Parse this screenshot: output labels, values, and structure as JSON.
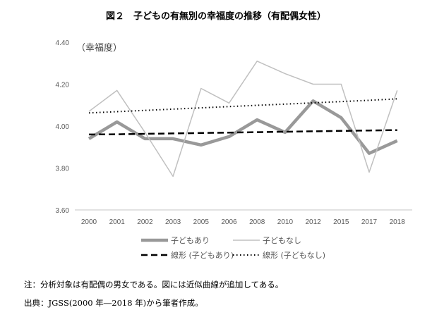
{
  "chart_data": {
    "type": "line",
    "title": "図２　子どもの有無別の幸福度の推移（有配偶女性）",
    "ylabel": "（幸福度）",
    "categories": [
      "2000",
      "2001",
      "2002",
      "2003",
      "2005",
      "2006",
      "2008",
      "2010",
      "2012",
      "2015",
      "2017",
      "2018"
    ],
    "ylim": [
      3.6,
      4.4
    ],
    "yticks": [
      "3.60",
      "3.80",
      "4.00",
      "4.20",
      "4.40"
    ],
    "grid": false,
    "legend_placement": "bottom",
    "series": [
      {
        "name": "子どもあり",
        "style": "thick-solid",
        "color": "#999999",
        "values": [
          3.94,
          4.02,
          3.94,
          3.94,
          3.91,
          3.95,
          4.03,
          3.97,
          4.12,
          4.04,
          3.87,
          3.93
        ]
      },
      {
        "name": "子どもなし",
        "style": "thin-solid",
        "color": "#c0c0c0",
        "values": [
          4.07,
          4.17,
          3.97,
          3.76,
          4.18,
          4.11,
          4.31,
          4.25,
          4.2,
          4.2,
          3.78,
          4.17
        ]
      },
      {
        "name": "線形 (子どもあり)",
        "style": "dashed",
        "color": "#000000",
        "values": [
          3.96,
          3.961,
          3.963,
          3.965,
          3.967,
          3.969,
          3.971,
          3.973,
          3.975,
          3.977,
          3.979,
          3.981
        ]
      },
      {
        "name": "線形 (子どもなし)",
        "style": "dotted",
        "color": "#000000",
        "values": [
          4.063,
          4.069,
          4.075,
          4.081,
          4.087,
          4.093,
          4.099,
          4.105,
          4.111,
          4.117,
          4.123,
          4.13
        ]
      }
    ]
  },
  "notes": [
    "注：分析対象は有配偶の男女である。図には近似曲線が追加してある。",
    "出典：JGSS(2000 年―2018 年)から筆者作成。"
  ]
}
